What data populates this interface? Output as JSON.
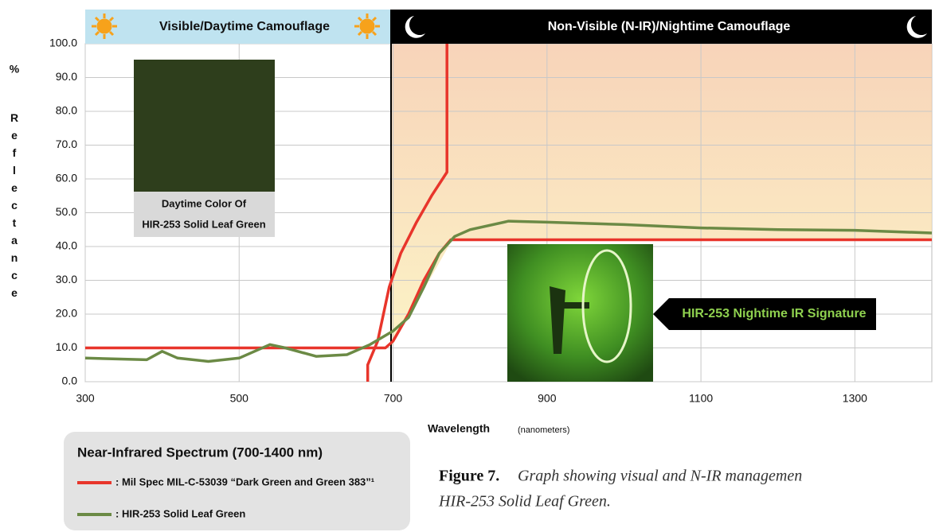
{
  "chart_data": {
    "type": "line",
    "banners": [
      "Visible/Daytime Camouflage",
      "Non-Visible (N-IR)/Nightime Camouflage"
    ],
    "swatch_label": [
      "Daytime Color Of",
      "HIR-253 Solid Leaf Green"
    ],
    "callout": "HIR-253 Nightime IR Signature",
    "x_label": "Wavelength",
    "x_unit": "(nanometers)",
    "y_unit": "%",
    "y_label": "Reflectance",
    "legend_title": "Near-Infrared Spectrum (700-1400 nm)",
    "series": [
      {
        "name": ": Mil Spec MIL-C-53039 “Dark Green and Green 383”¹",
        "color": "#e8352b",
        "x": [
          300,
          690,
          700,
          720,
          740,
          760,
          775,
          1400
        ],
        "values": [
          10,
          10,
          12,
          20,
          30,
          38,
          42,
          42
        ]
      },
      {
        "color": "#e8352b",
        "x": [
          667,
          667,
          680,
          695,
          710,
          730,
          750,
          770,
          770
        ],
        "values": [
          0,
          5,
          12,
          28,
          38,
          47,
          55,
          62,
          100
        ]
      },
      {
        "name": ": HIR-253 Solid Leaf Green",
        "color": "#6b8a45",
        "x": [
          300,
          380,
          400,
          420,
          460,
          500,
          540,
          560,
          600,
          640,
          670,
          700,
          720,
          740,
          760,
          780,
          800,
          850,
          900,
          1000,
          1100,
          1200,
          1300,
          1400
        ],
        "values": [
          7,
          6.5,
          9,
          7,
          6,
          7,
          11,
          10,
          7.5,
          8,
          11,
          15,
          19,
          28,
          38,
          43,
          45,
          47.5,
          47.2,
          46.5,
          45.5,
          45,
          44.8,
          44
        ]
      }
    ],
    "xlim": [
      300,
      1400
    ],
    "xticks": [
      300,
      500,
      700,
      900,
      1100,
      1300
    ],
    "ylim": [
      0,
      100
    ],
    "yticks": [
      {
        "value": 0,
        "label": "0.0"
      },
      {
        "value": 10,
        "label": "10.0"
      },
      {
        "value": 20,
        "label": "20.0"
      },
      {
        "value": 30,
        "label": "30.0"
      },
      {
        "value": 40,
        "label": "40.0"
      },
      {
        "value": 50,
        "label": "50.0"
      },
      {
        "value": 60,
        "label": "60.0"
      },
      {
        "value": 70,
        "label": "70.0"
      },
      {
        "value": 80,
        "label": "80.0"
      },
      {
        "value": 90,
        "label": "90.0"
      },
      {
        "value": 100,
        "label": "100.0"
      }
    ],
    "grid": true,
    "caption": {
      "label": "Figure 7.",
      "text": [
        "Graph showing visual and N-IR managemen",
        "HIR-253 Solid Leaf Green."
      ]
    }
  }
}
